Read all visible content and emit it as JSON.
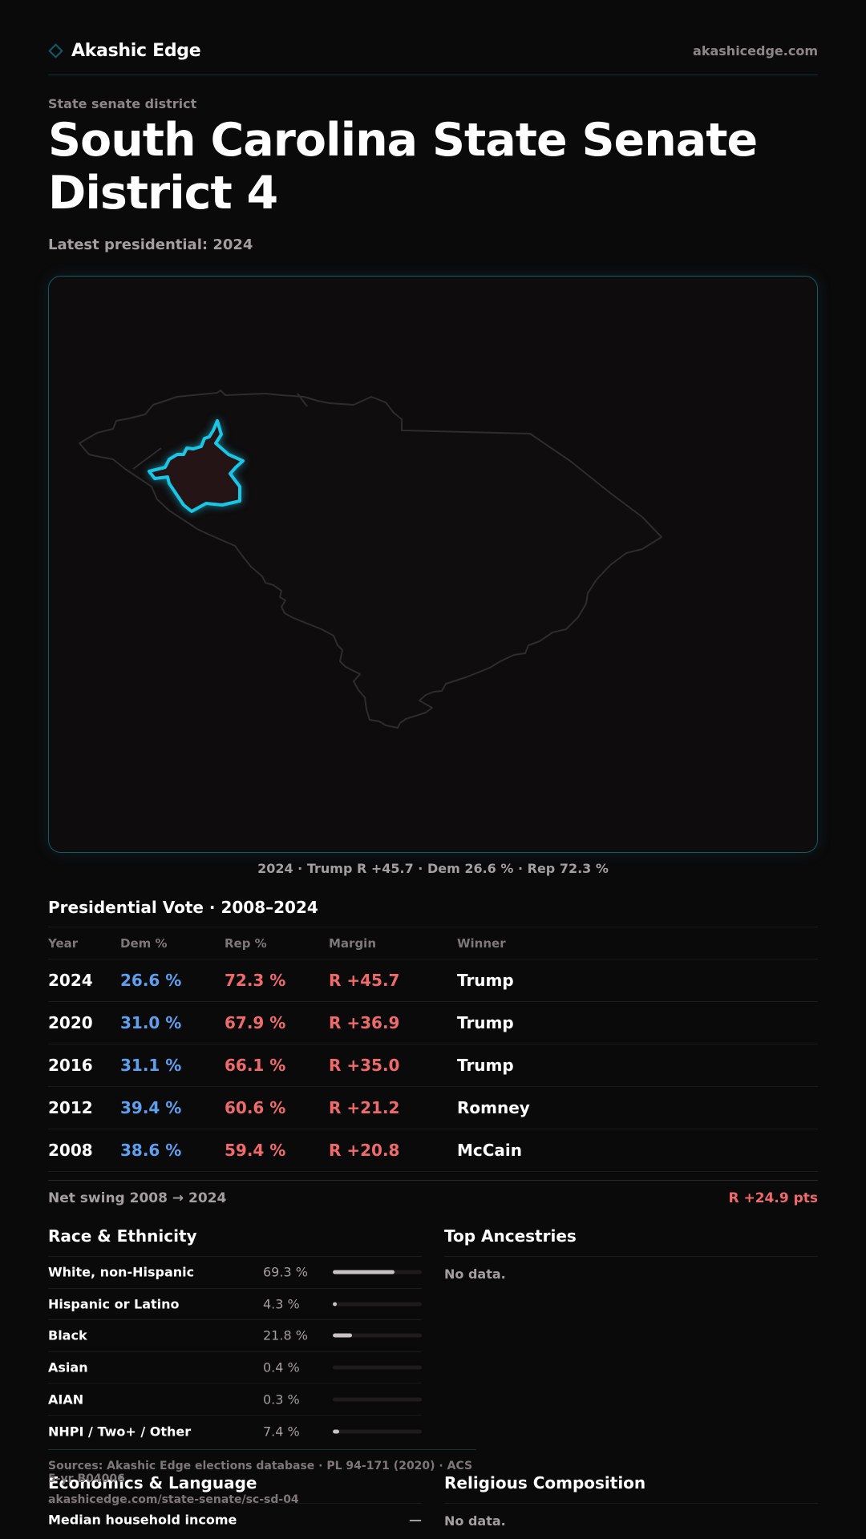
{
  "header": {
    "brand": "Akashic Edge",
    "site": "akashicedge.com"
  },
  "eyebrow": "State senate district",
  "title": "South Carolina State Senate District 4",
  "subtitle": "Latest presidential: 2024",
  "map": {
    "caption": "2024 · Trump R +45.7 · Dem 26.6 % · Rep 72.3 %",
    "colors": {
      "highlight": "#19c6e6",
      "district_fill": "#241416",
      "state_outline": "#2e2c2d"
    }
  },
  "presidential": {
    "title": "Presidential Vote · 2008–2024",
    "headers": {
      "year": "Year",
      "dem": "Dem %",
      "rep": "Rep %",
      "margin": "Margin",
      "winner": "Winner"
    },
    "rows": [
      {
        "year": "2024",
        "dem": "26.6 %",
        "rep": "72.3 %",
        "margin": "R +45.7",
        "winner": "Trump"
      },
      {
        "year": "2020",
        "dem": "31.0 %",
        "rep": "67.9 %",
        "margin": "R +36.9",
        "winner": "Trump"
      },
      {
        "year": "2016",
        "dem": "31.1 %",
        "rep": "66.1 %",
        "margin": "R +35.0",
        "winner": "Trump"
      },
      {
        "year": "2012",
        "dem": "39.4 %",
        "rep": "60.6 %",
        "margin": "R +21.2",
        "winner": "Romney"
      },
      {
        "year": "2008",
        "dem": "38.6 %",
        "rep": "59.4 %",
        "margin": "R +20.8",
        "winner": "McCain"
      }
    ],
    "swing_label": "Net swing 2008 → 2024",
    "swing_value": "R +24.9 pts"
  },
  "race": {
    "title": "Race & Ethnicity",
    "rows": [
      {
        "label": "White, non-Hispanic",
        "pct": "69.3 %",
        "value": 0.693
      },
      {
        "label": "Hispanic or Latino",
        "pct": "4.3 %",
        "value": 0.043
      },
      {
        "label": "Black",
        "pct": "21.8 %",
        "value": 0.218
      },
      {
        "label": "Asian",
        "pct": "0.4 %",
        "value": 0.004
      },
      {
        "label": "AIAN",
        "pct": "0.3 %",
        "value": 0.003
      },
      {
        "label": "NHPI / Two+ / Other",
        "pct": "7.4 %",
        "value": 0.074
      }
    ]
  },
  "ancestries": {
    "title": "Top Ancestries",
    "empty": "No data."
  },
  "sources": {
    "text": "Sources: Akashic Edge elections database · PL 94-171 (2020) · ACS 5-yr B04006",
    "url": "akashicedge.com/state-senate/sc-sd-04"
  },
  "economics": {
    "title": "Economics & Language",
    "rows": [
      {
        "label": "Median household income",
        "value": "—"
      }
    ]
  },
  "religion": {
    "title": "Religious Composition",
    "empty": "No data."
  }
}
